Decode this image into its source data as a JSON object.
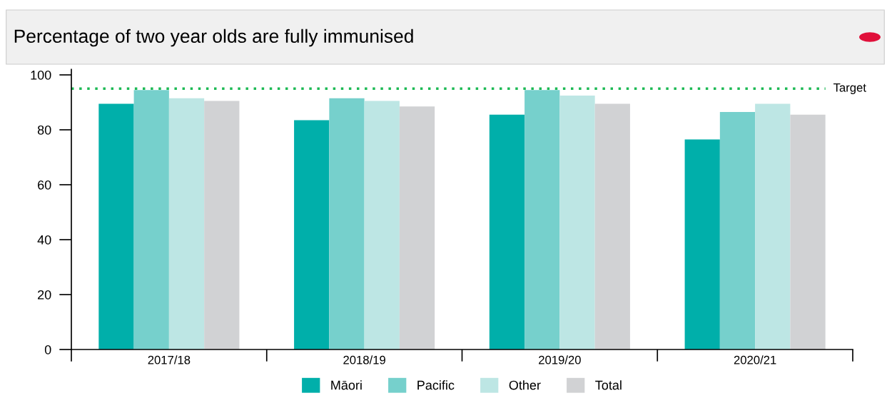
{
  "chart_data": {
    "type": "bar",
    "title": "Percentage of two year olds are fully immunised",
    "categories": [
      "2017/18",
      "2018/19",
      "2019/20",
      "2020/21"
    ],
    "series": [
      {
        "name": "Māori",
        "color": "#00afaa",
        "values": [
          89.5,
          83.5,
          85.5,
          76.5
        ]
      },
      {
        "name": "Pacific",
        "color": "#76d0cc",
        "values": [
          94.5,
          91.5,
          94.5,
          86.5
        ]
      },
      {
        "name": "Other",
        "color": "#bde6e4",
        "values": [
          91.5,
          90.5,
          92.5,
          89.5
        ]
      },
      {
        "name": "Total",
        "color": "#d1d2d4",
        "values": [
          90.5,
          88.5,
          89.5,
          85.5
        ]
      }
    ],
    "ylim": [
      0,
      102
    ],
    "yticks": [
      0,
      20,
      40,
      60,
      80,
      100
    ],
    "ref_lines": [
      {
        "axis": "y",
        "value": 95,
        "label": "Target",
        "color": "#1db954",
        "line_style": "dotted"
      }
    ],
    "grid": false,
    "legend": "bottom"
  }
}
